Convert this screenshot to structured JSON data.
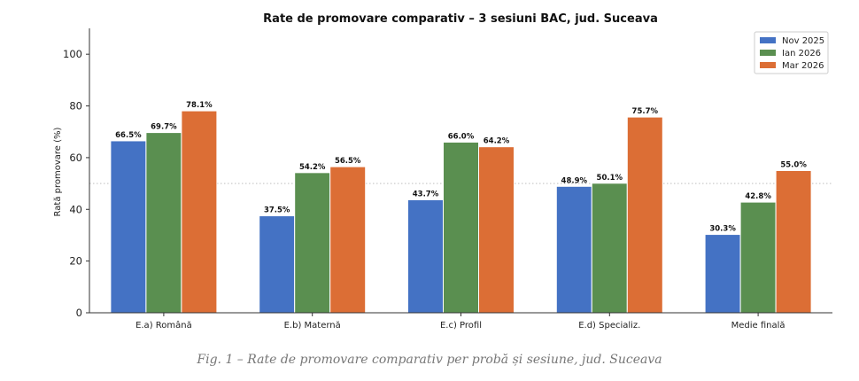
{
  "chart_data": {
    "type": "bar",
    "title": "Rate de promovare comparativ – 3 sesiuni BAC, jud. Suceava",
    "xlabel": "",
    "ylabel": "Rată promovare (%)",
    "ylim": [
      0,
      110
    ],
    "yticks": [
      0,
      20,
      40,
      60,
      80,
      100
    ],
    "reference_line": 50,
    "legend_position": "top-right",
    "categories": [
      "E.a) Română",
      "E.b) Maternă",
      "E.c) Profil",
      "E.d) Specializ.",
      "Medie finală"
    ],
    "series": [
      {
        "name": "Nov 2025",
        "color": "#4472c4",
        "values": [
          66.5,
          37.5,
          43.7,
          48.9,
          30.3
        ],
        "labels": [
          "66.5%",
          "37.5%",
          "43.7%",
          "48.9%",
          "30.3%"
        ]
      },
      {
        "name": "Ian 2026",
        "color": "#5a8f50",
        "values": [
          69.7,
          54.2,
          66.0,
          50.1,
          42.8
        ],
        "labels": [
          "69.7%",
          "54.2%",
          "66.0%",
          "50.1%",
          "42.8%"
        ]
      },
      {
        "name": "Mar 2026",
        "color": "#dc6e35",
        "values": [
          78.1,
          56.5,
          64.2,
          75.7,
          55.0
        ],
        "labels": [
          "78.1%",
          "56.5%",
          "64.2%",
          "75.7%",
          "55.0%"
        ]
      }
    ]
  },
  "caption": "Fig. 1 – Rate de promovare comparativ per probă și sesiune, jud. Suceava"
}
